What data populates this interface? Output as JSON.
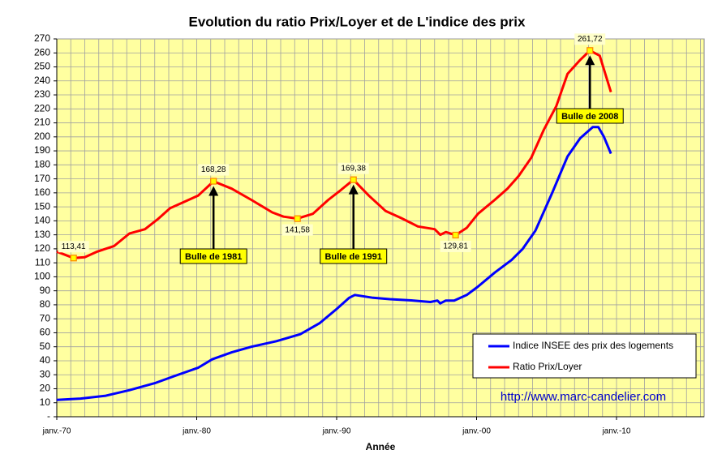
{
  "chart_data": {
    "type": "line",
    "title": "Evolution du ratio Prix/Loyer et de L'indice des prix",
    "xlabel": "Année",
    "xlim": [
      1970,
      2016.26
    ],
    "xticks": [
      {
        "value": 1970,
        "label": "janv.-70"
      },
      {
        "value": 1980,
        "label": "janv.-80"
      },
      {
        "value": 1990,
        "label": "janv.-90"
      },
      {
        "value": 2000,
        "label": "janv.-00"
      },
      {
        "value": 2010,
        "label": "janv.-10"
      }
    ],
    "xminor": [
      1971,
      1972,
      1973,
      1974,
      1975,
      1976,
      1977,
      1978,
      1979,
      1981,
      1982,
      1983,
      1984,
      1985,
      1986,
      1987,
      1988,
      1989,
      1991,
      1992,
      1993,
      1994,
      1995,
      1996,
      1997,
      1998,
      1999,
      2001,
      2002,
      2003,
      2004,
      2005,
      2006,
      2007,
      2008,
      2009,
      2011,
      2012,
      2013,
      2014,
      2015,
      2016
    ],
    "ylim": [
      0,
      270
    ],
    "yticks": [
      {
        "value": 0,
        "label": "-"
      },
      10,
      20,
      30,
      40,
      50,
      60,
      70,
      80,
      90,
      100,
      110,
      120,
      130,
      140,
      150,
      160,
      170,
      180,
      190,
      200,
      210,
      220,
      230,
      240,
      250,
      260,
      270
    ],
    "grid": true,
    "background": "#ffffa0",
    "series": [
      {
        "name": "Indice INSEE des prix des logements",
        "color": "#0000ff",
        "x": [
          1970,
          1971.7,
          1973.5,
          1975.2,
          1977,
          1978.4,
          1980.1,
          1981.1,
          1982.5,
          1983.9,
          1985.7,
          1987.4,
          1988.8,
          1990,
          1990.9,
          1991.3,
          1992.6,
          1993.8,
          1995.5,
          1996.7,
          1997.2,
          1997.4,
          1997.8,
          1998.4,
          1999.3,
          2000.1,
          2001.3,
          2002.5,
          2003.3,
          2004.2,
          2005.4,
          2006.5,
          2007.4,
          2008.3,
          2008.7,
          2009.1,
          2009.6
        ],
        "values": [
          12,
          13,
          15,
          19,
          24,
          29,
          35,
          41,
          46,
          50,
          54,
          59,
          67,
          77,
          85,
          87,
          85,
          84,
          83,
          82,
          83,
          81,
          83,
          83,
          87,
          93,
          103,
          112,
          120,
          133,
          160,
          186,
          199,
          207,
          207,
          200,
          188
        ]
      },
      {
        "name": "Ratio Prix/Loyer",
        "color": "#ff0000",
        "x": [
          1970,
          1971.2,
          1972,
          1972.9,
          1974.1,
          1975.2,
          1976.3,
          1977.2,
          1978.1,
          1979.2,
          1980.1,
          1981.2,
          1982.5,
          1983.9,
          1985.4,
          1986.2,
          1987.2,
          1988.3,
          1989.4,
          1990.3,
          1991.2,
          1992.3,
          1993.5,
          1994.6,
          1995.8,
          1997,
          1997.4,
          1997.8,
          1998.5,
          1999.3,
          2000.1,
          2001.3,
          2002.2,
          2003,
          2003.9,
          2004.8,
          2005.7,
          2006.5,
          2007.4,
          2008.1,
          2008.8,
          2009.6
        ],
        "values": [
          118,
          113.41,
          114,
          118,
          122,
          131,
          134,
          141,
          149,
          154,
          158,
          168.28,
          163,
          155,
          146,
          143,
          141.58,
          145,
          155,
          162,
          169.38,
          158,
          147,
          142,
          136,
          134,
          130,
          132,
          129.81,
          135,
          145,
          155,
          163,
          172,
          185,
          205,
          222,
          245,
          255,
          261.72,
          258,
          232
        ]
      }
    ],
    "legend": "lower right",
    "annotations": [
      {
        "x": 1971.2,
        "y": 113.41,
        "label": "113,41"
      },
      {
        "x": 1981.2,
        "y": 168.28,
        "label": "168,28"
      },
      {
        "x": 1987.2,
        "y": 141.58,
        "label": "141,58"
      },
      {
        "x": 1991.2,
        "y": 169.38,
        "label": "169,38"
      },
      {
        "x": 1998.5,
        "y": 129.81,
        "label": "129,81"
      },
      {
        "x": 2008.1,
        "y": 261.72,
        "label": "261,72"
      }
    ],
    "callouts": [
      {
        "text": "Bulle de 1981",
        "x": 1981.2,
        "y": 168.28
      },
      {
        "text": "Bulle de 1991",
        "x": 1991.2,
        "y": 169.38
      },
      {
        "text": "Bulle de 2008",
        "x": 2008.1,
        "y": 261.72
      }
    ],
    "source": "http://www.marc-candelier.com"
  }
}
